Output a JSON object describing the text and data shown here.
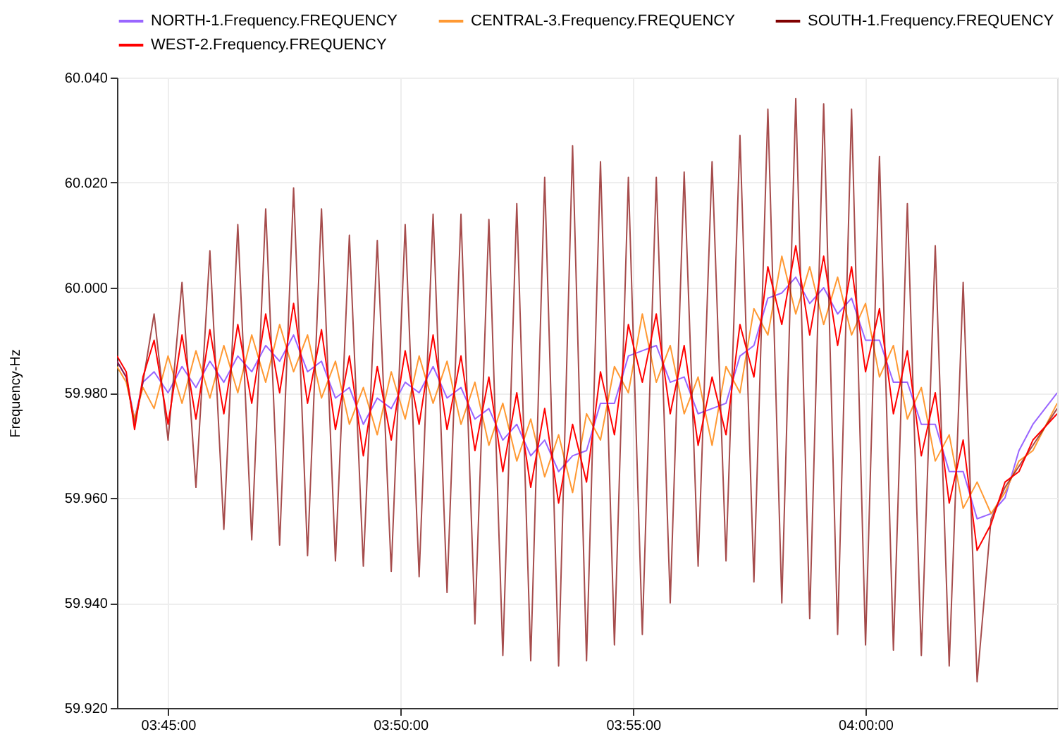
{
  "chart_data": {
    "type": "line",
    "ylabel": "Frequency-Hz",
    "legend": "top",
    "grid": true,
    "xlim": [
      3.7317,
      4.0687
    ],
    "ylim": [
      59.92,
      60.04
    ],
    "xticks": [
      {
        "value": 3.75,
        "label": "03:45:00"
      },
      {
        "value": 3.8333,
        "label": "03:50:00"
      },
      {
        "value": 3.9167,
        "label": "03:55:00"
      },
      {
        "value": 4.0,
        "label": "04:00:00"
      }
    ],
    "yticks": [
      {
        "value": 59.92,
        "label": "59.920"
      },
      {
        "value": 59.94,
        "label": "59.940"
      },
      {
        "value": 59.96,
        "label": "59.960"
      },
      {
        "value": 59.98,
        "label": "59.980"
      },
      {
        "value": 60.0,
        "label": "60.000"
      },
      {
        "value": 60.02,
        "label": "60.020"
      },
      {
        "value": 60.04,
        "label": "60.040"
      }
    ],
    "x": [
      3.7317,
      3.735,
      3.738,
      3.741,
      3.745,
      3.75,
      3.755,
      3.76,
      3.765,
      3.77,
      3.775,
      3.78,
      3.785,
      3.79,
      3.795,
      3.8,
      3.805,
      3.81,
      3.815,
      3.82,
      3.825,
      3.83,
      3.835,
      3.84,
      3.845,
      3.85,
      3.855,
      3.86,
      3.865,
      3.87,
      3.875,
      3.88,
      3.885,
      3.89,
      3.895,
      3.9,
      3.905,
      3.91,
      3.915,
      3.92,
      3.925,
      3.93,
      3.935,
      3.94,
      3.945,
      3.95,
      3.955,
      3.96,
      3.965,
      3.97,
      3.975,
      3.98,
      3.985,
      3.99,
      3.995,
      4.0,
      4.005,
      4.01,
      4.015,
      4.02,
      4.025,
      4.03,
      4.035,
      4.04,
      4.045,
      4.05,
      4.055,
      4.06,
      4.0687
    ],
    "series": [
      {
        "name": "NORTH-1.Frequency.FREQUENCY",
        "color": "#9966ff",
        "values": [
          59.986,
          59.983,
          59.975,
          59.982,
          59.984,
          59.98,
          59.985,
          59.981,
          59.986,
          59.982,
          59.987,
          59.984,
          59.989,
          59.986,
          59.991,
          59.984,
          59.986,
          59.979,
          59.981,
          59.974,
          59.979,
          59.977,
          59.982,
          59.98,
          59.985,
          59.979,
          59.981,
          59.975,
          59.977,
          59.971,
          59.974,
          59.968,
          59.971,
          59.965,
          59.968,
          59.969,
          59.978,
          59.978,
          59.987,
          59.988,
          59.989,
          59.982,
          59.983,
          59.976,
          59.977,
          59.978,
          59.987,
          59.989,
          59.998,
          59.999,
          60.002,
          59.997,
          60.0,
          59.995,
          59.998,
          59.99,
          59.99,
          59.982,
          59.982,
          59.974,
          59.974,
          59.965,
          59.965,
          59.956,
          59.957,
          59.96,
          59.969,
          59.974,
          59.98
        ]
      },
      {
        "name": "CENTRAL-3.Frequency.FREQUENCY",
        "color": "#ff9933",
        "values": [
          59.985,
          59.982,
          59.975,
          59.981,
          59.977,
          59.987,
          59.978,
          59.988,
          59.979,
          59.989,
          59.98,
          59.991,
          59.982,
          59.993,
          59.984,
          59.991,
          59.979,
          59.986,
          59.974,
          59.981,
          59.972,
          59.984,
          59.975,
          59.987,
          59.978,
          59.986,
          59.974,
          59.982,
          59.97,
          59.978,
          59.967,
          59.975,
          59.964,
          59.972,
          59.961,
          59.976,
          59.971,
          59.985,
          59.98,
          59.995,
          59.982,
          59.989,
          59.976,
          59.983,
          59.97,
          59.985,
          59.98,
          59.996,
          59.991,
          60.006,
          59.995,
          60.004,
          59.993,
          60.002,
          59.991,
          59.997,
          59.983,
          59.989,
          59.975,
          59.981,
          59.967,
          59.972,
          59.958,
          59.963,
          59.957,
          59.961,
          59.967,
          59.969,
          59.978
        ]
      },
      {
        "name": "SOUTH-1.Frequency.FREQUENCY",
        "color": "#800000",
        "values": [
          59.986,
          59.983,
          59.974,
          59.982,
          59.995,
          59.971,
          60.001,
          59.962,
          60.007,
          59.954,
          60.012,
          59.952,
          60.015,
          59.951,
          60.019,
          59.949,
          60.015,
          59.948,
          60.01,
          59.947,
          60.009,
          59.946,
          60.012,
          59.945,
          60.014,
          59.942,
          60.014,
          59.936,
          60.013,
          59.93,
          60.016,
          59.929,
          60.021,
          59.928,
          60.027,
          59.929,
          60.024,
          59.932,
          60.021,
          59.934,
          60.021,
          59.94,
          60.022,
          59.947,
          60.024,
          59.948,
          60.029,
          59.944,
          60.034,
          59.94,
          60.036,
          59.937,
          60.035,
          59.934,
          60.034,
          59.932,
          60.025,
          59.931,
          60.016,
          59.93,
          60.008,
          59.928,
          60.001,
          59.925,
          59.956,
          59.962,
          59.966,
          59.97,
          59.977
        ]
      },
      {
        "name": "WEST-2.Frequency.FREQUENCY",
        "color": "#ff0000",
        "values": [
          59.987,
          59.984,
          59.973,
          59.983,
          59.99,
          59.974,
          59.991,
          59.975,
          59.992,
          59.976,
          59.993,
          59.978,
          59.995,
          59.98,
          59.997,
          59.978,
          59.992,
          59.973,
          59.987,
          59.968,
          59.985,
          59.971,
          59.988,
          59.974,
          59.991,
          59.973,
          59.987,
          59.969,
          59.983,
          59.965,
          59.98,
          59.962,
          59.977,
          59.959,
          59.974,
          59.963,
          59.984,
          59.972,
          59.993,
          59.982,
          59.995,
          59.976,
          59.989,
          59.97,
          59.983,
          59.972,
          59.993,
          59.983,
          60.004,
          59.993,
          60.008,
          59.991,
          60.006,
          59.989,
          60.004,
          59.984,
          59.996,
          59.976,
          59.988,
          59.968,
          59.98,
          59.959,
          59.971,
          59.95,
          59.955,
          59.963,
          59.965,
          59.971,
          59.976
        ]
      }
    ]
  }
}
